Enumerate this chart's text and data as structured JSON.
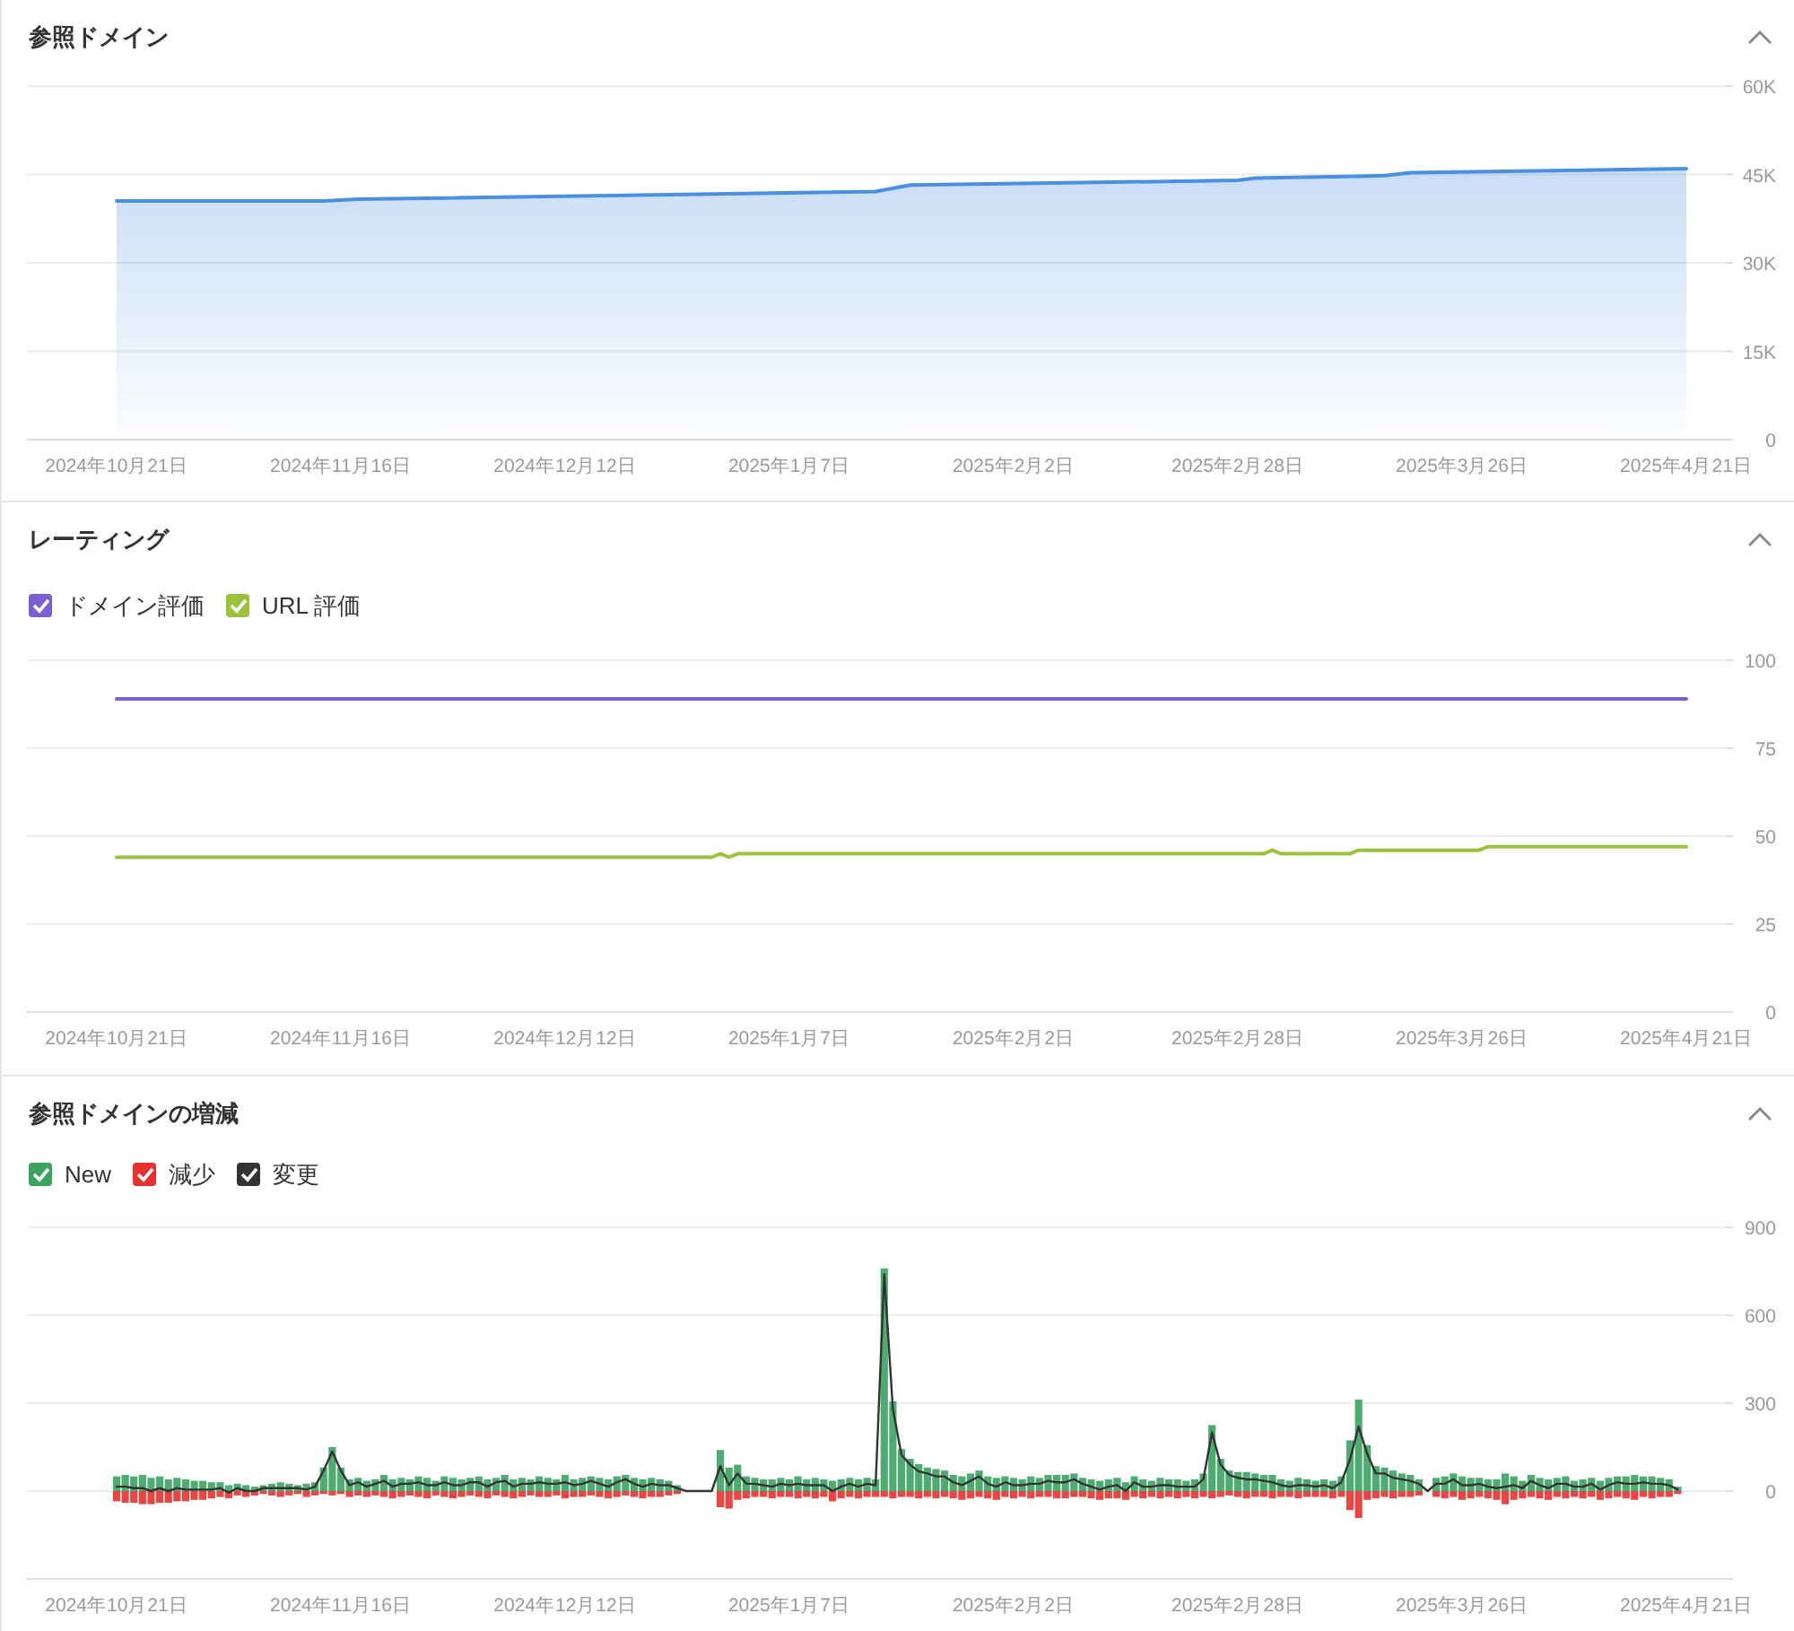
{
  "chart_data": [
    {
      "type": "area",
      "title": "参照ドメイン",
      "color": "#4a8fe0",
      "x": [
        "2024-10-21",
        "2024-11-14",
        "2024-11-18",
        "2025-01-17",
        "2025-01-21",
        "2025-02-28",
        "2025-03-02",
        "2025-03-17",
        "2025-03-20",
        "2025-04-21"
      ],
      "values": [
        40500,
        40500,
        40800,
        42100,
        43200,
        44000,
        44400,
        44800,
        45300,
        46000
      ],
      "xlim": [
        "2024-10-21",
        "2025-04-21"
      ],
      "xticks": [
        {
          "value": "2024-10-21",
          "label": "2024年10月21日"
        },
        {
          "value": "2024-11-16",
          "label": "2024年11月16日"
        },
        {
          "value": "2024-12-12",
          "label": "2024年12月12日"
        },
        {
          "value": "2025-01-07",
          "label": "2025年1月7日"
        },
        {
          "value": "2025-02-02",
          "label": "2025年2月2日"
        },
        {
          "value": "2025-02-28",
          "label": "2025年2月28日"
        },
        {
          "value": "2025-03-26",
          "label": "2025年3月26日"
        },
        {
          "value": "2025-04-21",
          "label": "2025年4月21日"
        }
      ],
      "ylim": [
        0,
        60000
      ],
      "yticks": [
        0,
        {
          "value": 15000,
          "label": "15K"
        },
        {
          "value": 30000,
          "label": "30K"
        },
        {
          "value": 45000,
          "label": "45K"
        },
        {
          "value": 60000,
          "label": "60K"
        }
      ],
      "grid": "y"
    },
    {
      "type": "line",
      "title": "レーティング",
      "legend": "top left",
      "series": [
        {
          "name": "ドメイン評価",
          "color": "#7b5fd0",
          "x": [
            "2024-10-21",
            "2025-04-21"
          ],
          "values": [
            89,
            89
          ]
        },
        {
          "name": "URL 評価",
          "color": "#9bc23c",
          "x": [
            "2024-10-21",
            "2024-12-29",
            "2024-12-30",
            "2024-12-31",
            "2025-01-01",
            "2025-03-03",
            "2025-03-04",
            "2025-03-05",
            "2025-03-13",
            "2025-03-14",
            "2025-03-28",
            "2025-03-29",
            "2025-04-21"
          ],
          "values": [
            44,
            44,
            45,
            44,
            45,
            45,
            46,
            45,
            45,
            46,
            46,
            47,
            47
          ]
        }
      ],
      "xlim": [
        "2024-10-21",
        "2025-04-21"
      ],
      "xticks": [
        {
          "value": "2024-10-21",
          "label": "2024年10月21日"
        },
        {
          "value": "2024-11-16",
          "label": "2024年11月16日"
        },
        {
          "value": "2024-12-12",
          "label": "2024年12月12日"
        },
        {
          "value": "2025-01-07",
          "label": "2025年1月7日"
        },
        {
          "value": "2025-02-02",
          "label": "2025年2月2日"
        },
        {
          "value": "2025-02-28",
          "label": "2025年2月28日"
        },
        {
          "value": "2025-03-26",
          "label": "2025年3月26日"
        },
        {
          "value": "2025-04-21",
          "label": "2025年4月21日"
        }
      ],
      "ylim": [
        0,
        100
      ],
      "yticks": [
        0,
        25,
        50,
        75,
        100
      ],
      "grid": "y"
    },
    {
      "type": "bar",
      "title": "参照ドメインの増減",
      "legend": "top left",
      "stacked": true,
      "x": [
        "2024-10-21",
        "2024-10-22",
        "2024-10-23",
        "2024-10-24",
        "2024-10-25",
        "2024-10-26",
        "2024-10-27",
        "2024-10-28",
        "2024-10-29",
        "2024-10-30",
        "2024-10-31",
        "2024-11-01",
        "2024-11-02",
        "2024-11-03",
        "2024-11-04",
        "2024-11-05",
        "2024-11-06",
        "2024-11-07",
        "2024-11-08",
        "2024-11-09",
        "2024-11-10",
        "2024-11-11",
        "2024-11-12",
        "2024-11-13",
        "2024-11-14",
        "2024-11-15",
        "2024-11-16",
        "2024-11-17",
        "2024-11-18",
        "2024-11-19",
        "2024-11-20",
        "2024-11-21",
        "2024-11-22",
        "2024-11-23",
        "2024-11-24",
        "2024-11-25",
        "2024-11-26",
        "2024-11-27",
        "2024-11-28",
        "2024-11-29",
        "2024-11-30",
        "2024-12-01",
        "2024-12-02",
        "2024-12-03",
        "2024-12-04",
        "2024-12-05",
        "2024-12-06",
        "2024-12-07",
        "2024-12-08",
        "2024-12-09",
        "2024-12-10",
        "2024-12-11",
        "2024-12-12",
        "2024-12-13",
        "2024-12-14",
        "2024-12-15",
        "2024-12-16",
        "2024-12-17",
        "2024-12-18",
        "2024-12-19",
        "2024-12-20",
        "2024-12-21",
        "2024-12-22",
        "2024-12-23",
        "2024-12-24",
        "2024-12-25",
        "2024-12-26",
        "2024-12-27",
        "2024-12-28",
        "2024-12-29",
        "2024-12-30",
        "2024-12-31",
        "2025-01-01",
        "2025-01-02",
        "2025-01-03",
        "2025-01-04",
        "2025-01-05",
        "2025-01-06",
        "2025-01-07",
        "2025-01-08",
        "2025-01-09",
        "2025-01-10",
        "2025-01-11",
        "2025-01-12",
        "2025-01-13",
        "2025-01-14",
        "2025-01-15",
        "2025-01-16",
        "2025-01-17",
        "2025-01-18",
        "2025-01-19",
        "2025-01-20",
        "2025-01-21",
        "2025-01-22",
        "2025-01-23",
        "2025-01-24",
        "2025-01-25",
        "2025-01-26",
        "2025-01-27",
        "2025-01-28",
        "2025-01-29",
        "2025-01-30",
        "2025-01-31",
        "2025-02-01",
        "2025-02-02",
        "2025-02-03",
        "2025-02-04",
        "2025-02-05",
        "2025-02-06",
        "2025-02-07",
        "2025-02-08",
        "2025-02-09",
        "2025-02-10",
        "2025-02-11",
        "2025-02-12",
        "2025-02-13",
        "2025-02-14",
        "2025-02-15",
        "2025-02-16",
        "2025-02-17",
        "2025-02-18",
        "2025-02-19",
        "2025-02-20",
        "2025-02-21",
        "2025-02-22",
        "2025-02-23",
        "2025-02-24",
        "2025-02-25",
        "2025-02-26",
        "2025-02-27",
        "2025-02-28",
        "2025-03-01",
        "2025-03-02",
        "2025-03-03",
        "2025-03-04",
        "2025-03-05",
        "2025-03-06",
        "2025-03-07",
        "2025-03-08",
        "2025-03-09",
        "2025-03-10",
        "2025-03-11",
        "2025-03-12",
        "2025-03-13",
        "2025-03-14",
        "2025-03-15",
        "2025-03-16",
        "2025-03-17",
        "2025-03-18",
        "2025-03-19",
        "2025-03-20",
        "2025-03-21",
        "2025-03-22",
        "2025-03-23",
        "2025-03-24",
        "2025-03-25",
        "2025-03-26",
        "2025-03-27",
        "2025-03-28",
        "2025-03-29",
        "2025-03-30",
        "2025-03-31",
        "2025-04-01",
        "2025-04-02",
        "2025-04-03",
        "2025-04-04",
        "2025-04-05",
        "2025-04-06",
        "2025-04-07",
        "2025-04-08",
        "2025-04-09",
        "2025-04-10",
        "2025-04-11",
        "2025-04-12",
        "2025-04-13",
        "2025-04-14",
        "2025-04-15",
        "2025-04-16",
        "2025-04-17",
        "2025-04-18",
        "2025-04-19",
        "2025-04-20"
      ],
      "series": [
        {
          "name": "New",
          "type": "bar",
          "color": "#3aa35f",
          "values": [
            50,
            55,
            50,
            55,
            45,
            50,
            40,
            45,
            40,
            35,
            35,
            30,
            30,
            20,
            25,
            20,
            15,
            20,
            25,
            30,
            25,
            20,
            25,
            30,
            80,
            150,
            80,
            40,
            45,
            35,
            40,
            55,
            40,
            45,
            40,
            50,
            45,
            35,
            50,
            45,
            40,
            45,
            50,
            40,
            45,
            55,
            40,
            45,
            40,
            50,
            45,
            40,
            55,
            40,
            45,
            50,
            45,
            40,
            50,
            55,
            45,
            40,
            45,
            40,
            35,
            20,
            0,
            0,
            0,
            0,
            140,
            80,
            90,
            50,
            45,
            40,
            40,
            45,
            40,
            50,
            40,
            45,
            40,
            35,
            40,
            45,
            40,
            45,
            40,
            760,
            306,
            143,
            110,
            92,
            80,
            75,
            70,
            55,
            50,
            60,
            70,
            50,
            45,
            50,
            45,
            40,
            50,
            45,
            55,
            55,
            55,
            60,
            45,
            40,
            35,
            40,
            45,
            30,
            50,
            40,
            35,
            45,
            40,
            40,
            35,
            40,
            60,
            225,
            110,
            70,
            65,
            65,
            60,
            55,
            55,
            40,
            35,
            45,
            40,
            35,
            40,
            35,
            50,
            173,
            312,
            157,
            85,
            80,
            70,
            60,
            55,
            40,
            0,
            45,
            50,
            60,
            50,
            45,
            45,
            40,
            40,
            60,
            50,
            35,
            55,
            45,
            40,
            45,
            50,
            35,
            40,
            45,
            35,
            45,
            50,
            50,
            55,
            50,
            50,
            45,
            40,
            15
          ]
        },
        {
          "name": "減少",
          "type": "bar",
          "color": "#e8302f",
          "values": [
            -35,
            -40,
            -40,
            -45,
            -45,
            -40,
            -40,
            -35,
            -35,
            -30,
            -30,
            -25,
            -20,
            -25,
            -15,
            -20,
            -15,
            -10,
            -15,
            -20,
            -15,
            -10,
            -20,
            -15,
            -10,
            -15,
            -10,
            -20,
            -15,
            -20,
            -15,
            -20,
            -25,
            -20,
            -15,
            -20,
            -25,
            -15,
            -20,
            -25,
            -20,
            -15,
            -20,
            -25,
            -15,
            -20,
            -25,
            -20,
            -15,
            -20,
            -20,
            -15,
            -25,
            -20,
            -20,
            -15,
            -20,
            -25,
            -20,
            -15,
            -20,
            -25,
            -20,
            -20,
            -15,
            -10,
            0,
            0,
            0,
            0,
            -55,
            -60,
            -30,
            -25,
            -20,
            -20,
            -25,
            -20,
            -20,
            -25,
            -20,
            -25,
            -20,
            -35,
            -25,
            -20,
            -25,
            -20,
            -20,
            -20,
            -25,
            -20,
            -20,
            -25,
            -20,
            -25,
            -20,
            -25,
            -30,
            -25,
            -20,
            -25,
            -30,
            -20,
            -25,
            -20,
            -25,
            -20,
            -20,
            -25,
            -25,
            -20,
            -20,
            -25,
            -30,
            -25,
            -25,
            -30,
            -20,
            -25,
            -20,
            -25,
            -20,
            -25,
            -20,
            -25,
            -20,
            -25,
            -20,
            -15,
            -20,
            -25,
            -20,
            -20,
            -25,
            -20,
            -20,
            -25,
            -20,
            -20,
            -20,
            -25,
            -20,
            -65,
            -92,
            -30,
            -25,
            -20,
            -25,
            -20,
            -20,
            -15,
            0,
            -20,
            -25,
            -20,
            -30,
            -25,
            -20,
            -25,
            -30,
            -45,
            -30,
            -25,
            -20,
            -25,
            -30,
            -20,
            -25,
            -20,
            -25,
            -20,
            -30,
            -25,
            -20,
            -25,
            -30,
            -20,
            -25,
            -20,
            -20,
            -10
          ]
        },
        {
          "name": "変更",
          "type": "line",
          "color": "#333333",
          "values": [
            15,
            15,
            10,
            10,
            0,
            10,
            0,
            10,
            5,
            5,
            5,
            5,
            10,
            -5,
            10,
            0,
            0,
            10,
            10,
            10,
            10,
            10,
            5,
            15,
            70,
            135,
            70,
            20,
            30,
            15,
            25,
            35,
            15,
            25,
            25,
            30,
            20,
            20,
            30,
            20,
            20,
            30,
            30,
            15,
            30,
            35,
            15,
            25,
            25,
            30,
            25,
            25,
            30,
            20,
            25,
            35,
            25,
            15,
            30,
            40,
            25,
            15,
            25,
            20,
            20,
            10,
            0,
            0,
            0,
            0,
            85,
            20,
            60,
            25,
            25,
            20,
            15,
            25,
            20,
            25,
            20,
            20,
            20,
            0,
            15,
            25,
            15,
            25,
            20,
            740,
            281,
            123,
            90,
            67,
            60,
            50,
            50,
            30,
            20,
            35,
            50,
            25,
            15,
            30,
            20,
            20,
            25,
            25,
            35,
            30,
            30,
            40,
            25,
            15,
            5,
            15,
            20,
            0,
            30,
            15,
            15,
            20,
            20,
            15,
            15,
            15,
            40,
            200,
            90,
            55,
            45,
            40,
            40,
            35,
            30,
            20,
            15,
            20,
            20,
            15,
            20,
            10,
            30,
            108,
            220,
            127,
            60,
            60,
            45,
            40,
            35,
            25,
            0,
            25,
            25,
            40,
            20,
            20,
            25,
            15,
            10,
            15,
            20,
            10,
            35,
            20,
            10,
            25,
            25,
            15,
            15,
            25,
            5,
            20,
            30,
            25,
            25,
            30,
            25,
            25,
            20,
            5
          ]
        }
      ],
      "xlim": [
        "2024-10-21",
        "2025-04-21"
      ],
      "xticks": [
        {
          "value": "2024-10-21",
          "label": "2024年10月21日"
        },
        {
          "value": "2024-11-16",
          "label": "2024年11月16日"
        },
        {
          "value": "2024-12-12",
          "label": "2024年12月12日"
        },
        {
          "value": "2025-01-07",
          "label": "2025年1月7日"
        },
        {
          "value": "2025-02-02",
          "label": "2025年2月2日"
        },
        {
          "value": "2025-02-28",
          "label": "2025年2月28日"
        },
        {
          "value": "2025-03-26",
          "label": "2025年3月26日"
        },
        {
          "value": "2025-04-21",
          "label": "2025年4月21日"
        }
      ],
      "ylim": [
        -300,
        900
      ],
      "yticks": [
        {
          "value": -300,
          "label": null
        },
        0,
        300,
        600,
        900
      ],
      "grid": "y"
    }
  ]
}
